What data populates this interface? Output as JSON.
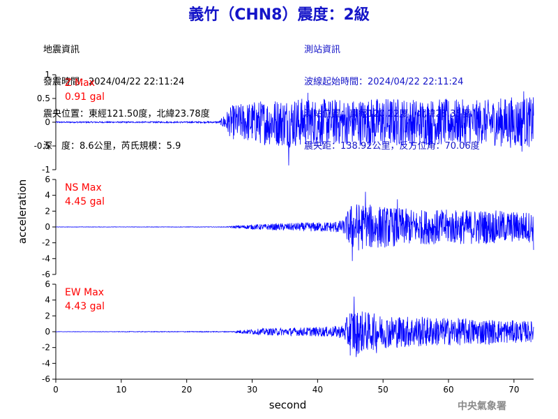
{
  "header": {
    "title": "義竹（CHN8）震度：2級",
    "left_lines": [
      "地震資訊",
      "發震時間：2024/04/22 22:11:24",
      "震央位置：東經121.50度，北緯23.78度",
      "深　度：8.6公里，芮氏規模：5.9"
    ],
    "right_lines": [
      "測站資訊",
      "波線起始時間：2024/04/22 22:11:24",
      "測站位置：東經120.22度，北緯23.35度",
      "震央距：138.92公里，反方位角：70.06度"
    ]
  },
  "footer": {
    "agency": "中央氣象署"
  },
  "colors": {
    "title": "#1414c8",
    "trace": "#0000ff",
    "max_label": "#ff0000",
    "axis": "#000000"
  },
  "chart_data": [
    {
      "type": "line",
      "panel": "Z",
      "label_line1": "Z Max",
      "label_line2": "0.91 gal",
      "ylim": [
        -1,
        1
      ],
      "yticks": [
        "1",
        "0.5",
        "0",
        "-0.5",
        "-1"
      ],
      "ytick_values": [
        1,
        0.5,
        0,
        -0.5,
        -1
      ],
      "xlim": [
        0,
        73
      ],
      "envelope": [
        [
          0,
          0.012
        ],
        [
          25,
          0.015
        ],
        [
          26,
          0.2
        ],
        [
          27,
          0.33
        ],
        [
          30,
          0.4
        ],
        [
          33,
          0.45
        ],
        [
          36,
          0.48
        ],
        [
          40,
          0.45
        ],
        [
          45,
          0.44
        ],
        [
          50,
          0.48
        ],
        [
          55,
          0.45
        ],
        [
          60,
          0.45
        ],
        [
          65,
          0.42
        ],
        [
          70,
          0.5
        ],
        [
          73,
          0.48
        ]
      ],
      "peaks": [
        [
          35.6,
          -0.91
        ],
        [
          71.5,
          0.65
        ],
        [
          38.5,
          0.62
        ],
        [
          71.2,
          -0.62
        ]
      ]
    },
    {
      "type": "line",
      "panel": "NS",
      "label_line1": "NS Max",
      "label_line2": "4.45 gal",
      "ylim": [
        -6,
        6
      ],
      "yticks": [
        "6",
        "4",
        "2",
        "0",
        "-2",
        "-4",
        "-6"
      ],
      "ytick_values": [
        6,
        4,
        2,
        0,
        -2,
        -4,
        -6
      ],
      "xlim": [
        0,
        73
      ],
      "envelope": [
        [
          0,
          0.02
        ],
        [
          26,
          0.03
        ],
        [
          28,
          0.2
        ],
        [
          32,
          0.35
        ],
        [
          38,
          0.5
        ],
        [
          42,
          0.6
        ],
        [
          44,
          0.8
        ],
        [
          45,
          2.6
        ],
        [
          46,
          2.8
        ],
        [
          48,
          2.6
        ],
        [
          50,
          2.4
        ],
        [
          55,
          2.0
        ],
        [
          60,
          2.0
        ],
        [
          65,
          2.0
        ],
        [
          70,
          1.8
        ],
        [
          73,
          1.8
        ]
      ],
      "peaks": [
        [
          47.3,
          4.45
        ],
        [
          45.3,
          -4.3
        ],
        [
          52.2,
          3.5
        ],
        [
          73,
          -2.9
        ]
      ]
    },
    {
      "type": "line",
      "panel": "EW",
      "label_line1": "EW Max",
      "label_line2": "4.43 gal",
      "ylim": [
        -6,
        6
      ],
      "yticks": [
        "6",
        "4",
        "2",
        "0",
        "-2",
        "-4",
        "-6"
      ],
      "ytick_values": [
        6,
        4,
        2,
        0,
        -2,
        -4,
        -6
      ],
      "xlim": [
        0,
        73
      ],
      "envelope": [
        [
          0,
          0.02
        ],
        [
          27,
          0.05
        ],
        [
          28,
          0.2
        ],
        [
          32,
          0.4
        ],
        [
          38,
          0.5
        ],
        [
          42,
          0.6
        ],
        [
          44,
          0.8
        ],
        [
          45,
          2.8
        ],
        [
          46,
          2.6
        ],
        [
          48,
          2.2
        ],
        [
          50,
          1.9
        ],
        [
          55,
          1.8
        ],
        [
          60,
          1.6
        ],
        [
          65,
          1.5
        ],
        [
          70,
          1.3
        ],
        [
          73,
          1.2
        ]
      ],
      "peaks": [
        [
          45.6,
          4.43
        ],
        [
          45.9,
          -3.2
        ],
        [
          49,
          -2.7
        ]
      ]
    }
  ],
  "x_axis": {
    "label": "second",
    "ticks": [
      "0",
      "10",
      "20",
      "30",
      "40",
      "50",
      "60",
      "70"
    ],
    "tick_values": [
      0,
      10,
      20,
      30,
      40,
      50,
      60,
      70
    ]
  },
  "y_axis": {
    "label": "acceleration"
  }
}
